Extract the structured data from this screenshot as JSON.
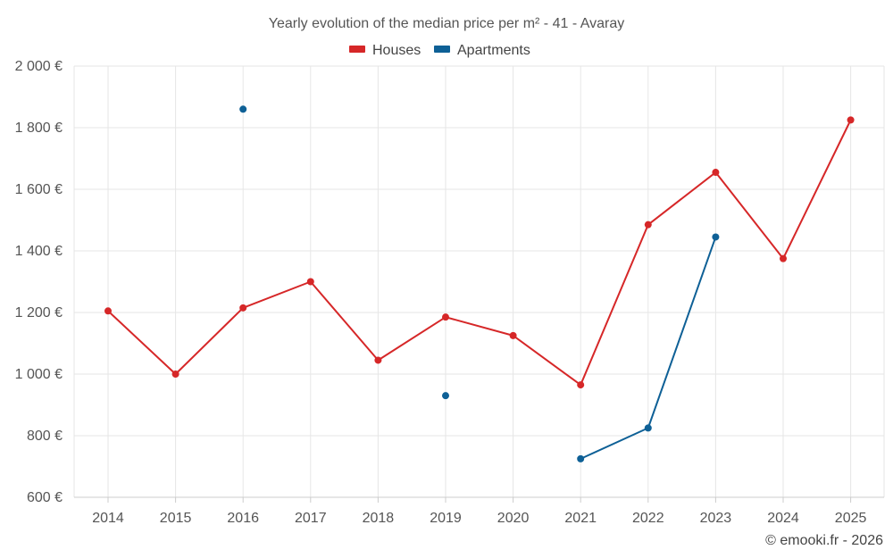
{
  "chart_data": {
    "type": "line",
    "title": "Yearly evolution of the median price per m² - 41 - Avaray",
    "x_categories": [
      "2014",
      "2015",
      "2016",
      "2017",
      "2018",
      "2019",
      "2020",
      "2021",
      "2022",
      "2023",
      "2024",
      "2025"
    ],
    "y_ticks": [
      600,
      800,
      1000,
      1200,
      1400,
      1600,
      1800,
      2000
    ],
    "y_tick_labels": [
      "600 €",
      "800 €",
      "1 000 €",
      "1 200 €",
      "1 400 €",
      "1 600 €",
      "1 800 €",
      "2 000 €"
    ],
    "ylim": [
      600,
      2000
    ],
    "grid": true,
    "legend_position": "top-center",
    "series": [
      {
        "name": "Houses",
        "color": "#d62728",
        "values": [
          1205,
          1000,
          1215,
          1300,
          1045,
          1185,
          1125,
          965,
          1485,
          1655,
          1375,
          1825
        ]
      },
      {
        "name": "Apartments",
        "color": "#0e6096",
        "values": [
          null,
          null,
          1860,
          null,
          null,
          930,
          null,
          725,
          825,
          1445,
          null,
          null
        ]
      }
    ]
  },
  "credit": "© emooki.fr - 2026"
}
